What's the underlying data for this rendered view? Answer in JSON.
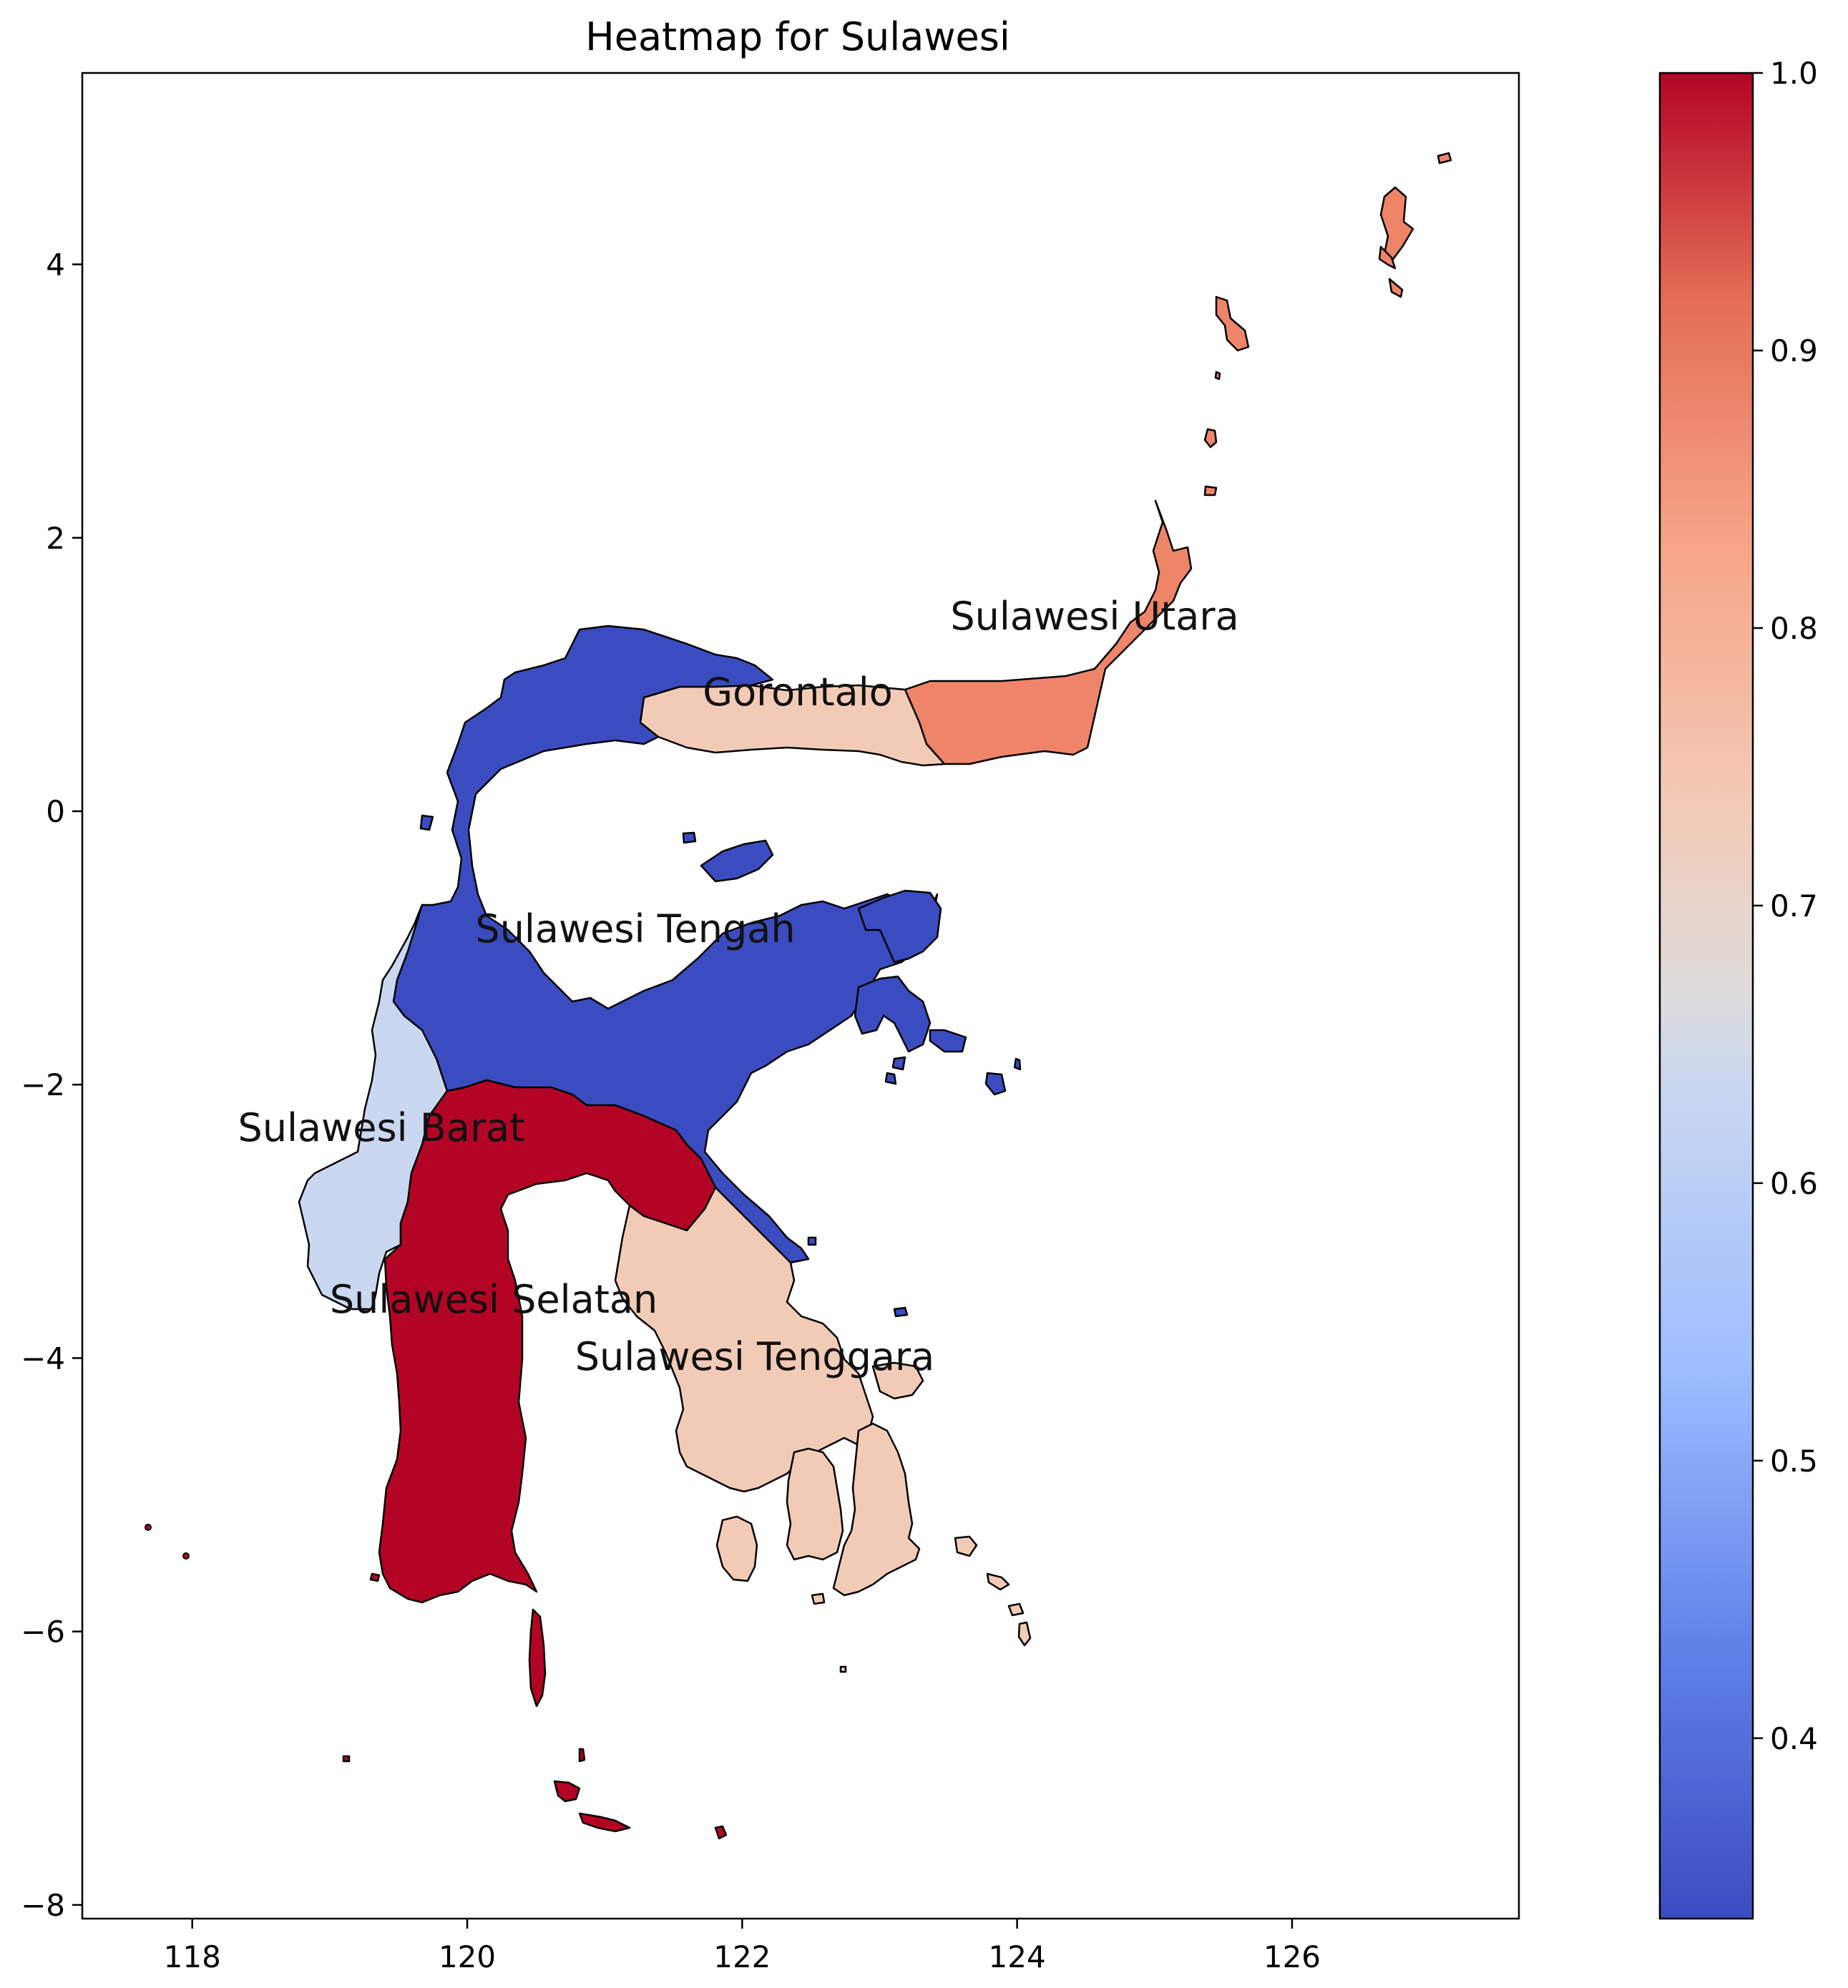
{
  "chart_data": {
    "type": "heatmap",
    "title": "Heatmap for Sulawesi",
    "xlabel": "",
    "ylabel": "",
    "xlim": [
      117.2,
      127.65
    ],
    "ylim": [
      -8.1,
      5.4
    ],
    "x_ticks": [
      "118",
      "120",
      "122",
      "124",
      "126"
    ],
    "y_ticks": [
      "4",
      "2",
      "0",
      "−2",
      "−4",
      "−6",
      "−8"
    ],
    "colormap": "coolwarm",
    "colorbar": {
      "min": 0.335,
      "max": 1.0,
      "ticks": [
        "1.0",
        "0.9",
        "0.8",
        "0.7",
        "0.6",
        "0.5",
        "0.4"
      ]
    },
    "regions": [
      {
        "name": "Sulawesi Utara",
        "value": 0.85,
        "color": "#ee8468"
      },
      {
        "name": "Gorontalo",
        "value": 0.74,
        "color": "#f2cbb7"
      },
      {
        "name": "Sulawesi Tengah",
        "value": 0.335,
        "color": "#3b4cc0"
      },
      {
        "name": "Sulawesi Barat",
        "value": 0.63,
        "color": "#c9d7f0"
      },
      {
        "name": "Sulawesi Selatan",
        "value": 1.0,
        "color": "#b40426"
      },
      {
        "name": "Sulawesi Tenggara",
        "value": 0.75,
        "color": "#f2cbb7"
      }
    ]
  }
}
